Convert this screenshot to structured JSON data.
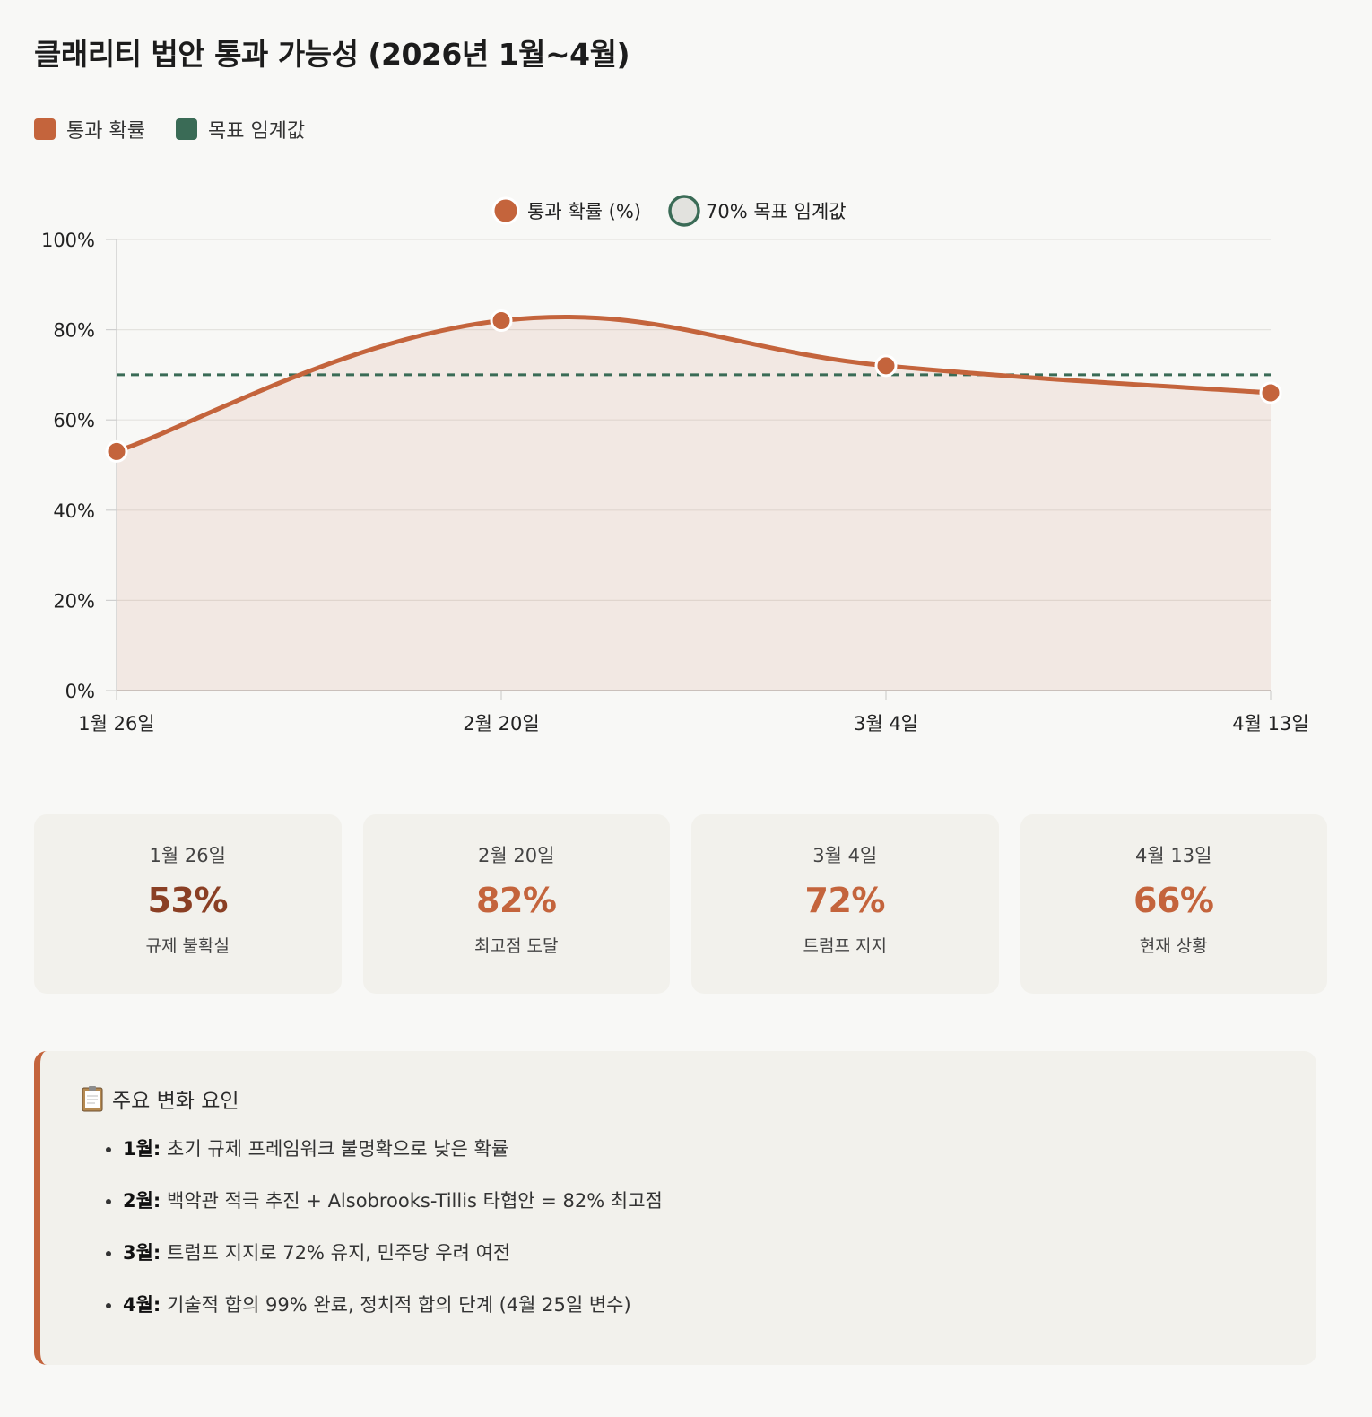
{
  "title": "클래리티 법안 통과 가능성 (2026년 1월~4월)",
  "colors": {
    "accent": "#c4643c",
    "threshold": "#3a6b56",
    "accent_dark": "#8a3f24"
  },
  "legend_top": [
    {
      "label": "통과 확률",
      "color": "#c4643c"
    },
    {
      "label": "목표 임계값",
      "color": "#3a6b56"
    }
  ],
  "chart_data": {
    "type": "line",
    "title": "",
    "x": [
      "1월 26일",
      "2월 20일",
      "3월 4일",
      "4월 13일"
    ],
    "series": [
      {
        "name": "통과 확률 (%)",
        "values": [
          53,
          82,
          72,
          66
        ],
        "color": "#c4643c",
        "fill": "area"
      },
      {
        "name": "70% 목표 임계값",
        "values": [
          70,
          70,
          70,
          70
        ],
        "color": "#3a6b56",
        "style": "dashed"
      }
    ],
    "ylim": [
      0,
      100
    ],
    "yticks": [
      "0%",
      "20%",
      "40%",
      "60%",
      "80%",
      "100%"
    ],
    "ytick_values": [
      0,
      20,
      40,
      60,
      80,
      100
    ],
    "legend": "top-center",
    "grid": true
  },
  "cards": [
    {
      "date": "1월 26일",
      "value": "53%",
      "desc": "규제 불확실",
      "color": "#8a3f24"
    },
    {
      "date": "2월 20일",
      "value": "82%",
      "desc": "최고점 도달",
      "color": "#c4643c"
    },
    {
      "date": "3월 4일",
      "value": "72%",
      "desc": "트럼프 지지",
      "color": "#c4643c"
    },
    {
      "date": "4월 13일",
      "value": "66%",
      "desc": "현재 상황",
      "color": "#c4643c"
    }
  ],
  "notes": {
    "icon": "clipboard-icon",
    "heading": "주요 변화 요인",
    "items": [
      {
        "label": "1월:",
        "text": "초기 규제 프레임워크 불명확으로 낮은 확률"
      },
      {
        "label": "2월:",
        "text": "백악관 적극 추진 + Alsobrooks-Tillis 타협안 = 82% 최고점"
      },
      {
        "label": "3월:",
        "text": "트럼프 지지로 72% 유지, 민주당 우려 여전"
      },
      {
        "label": "4월:",
        "text": "기술적 합의 99% 완료, 정치적 합의 단계 (4월 25일 변수)"
      }
    ]
  }
}
